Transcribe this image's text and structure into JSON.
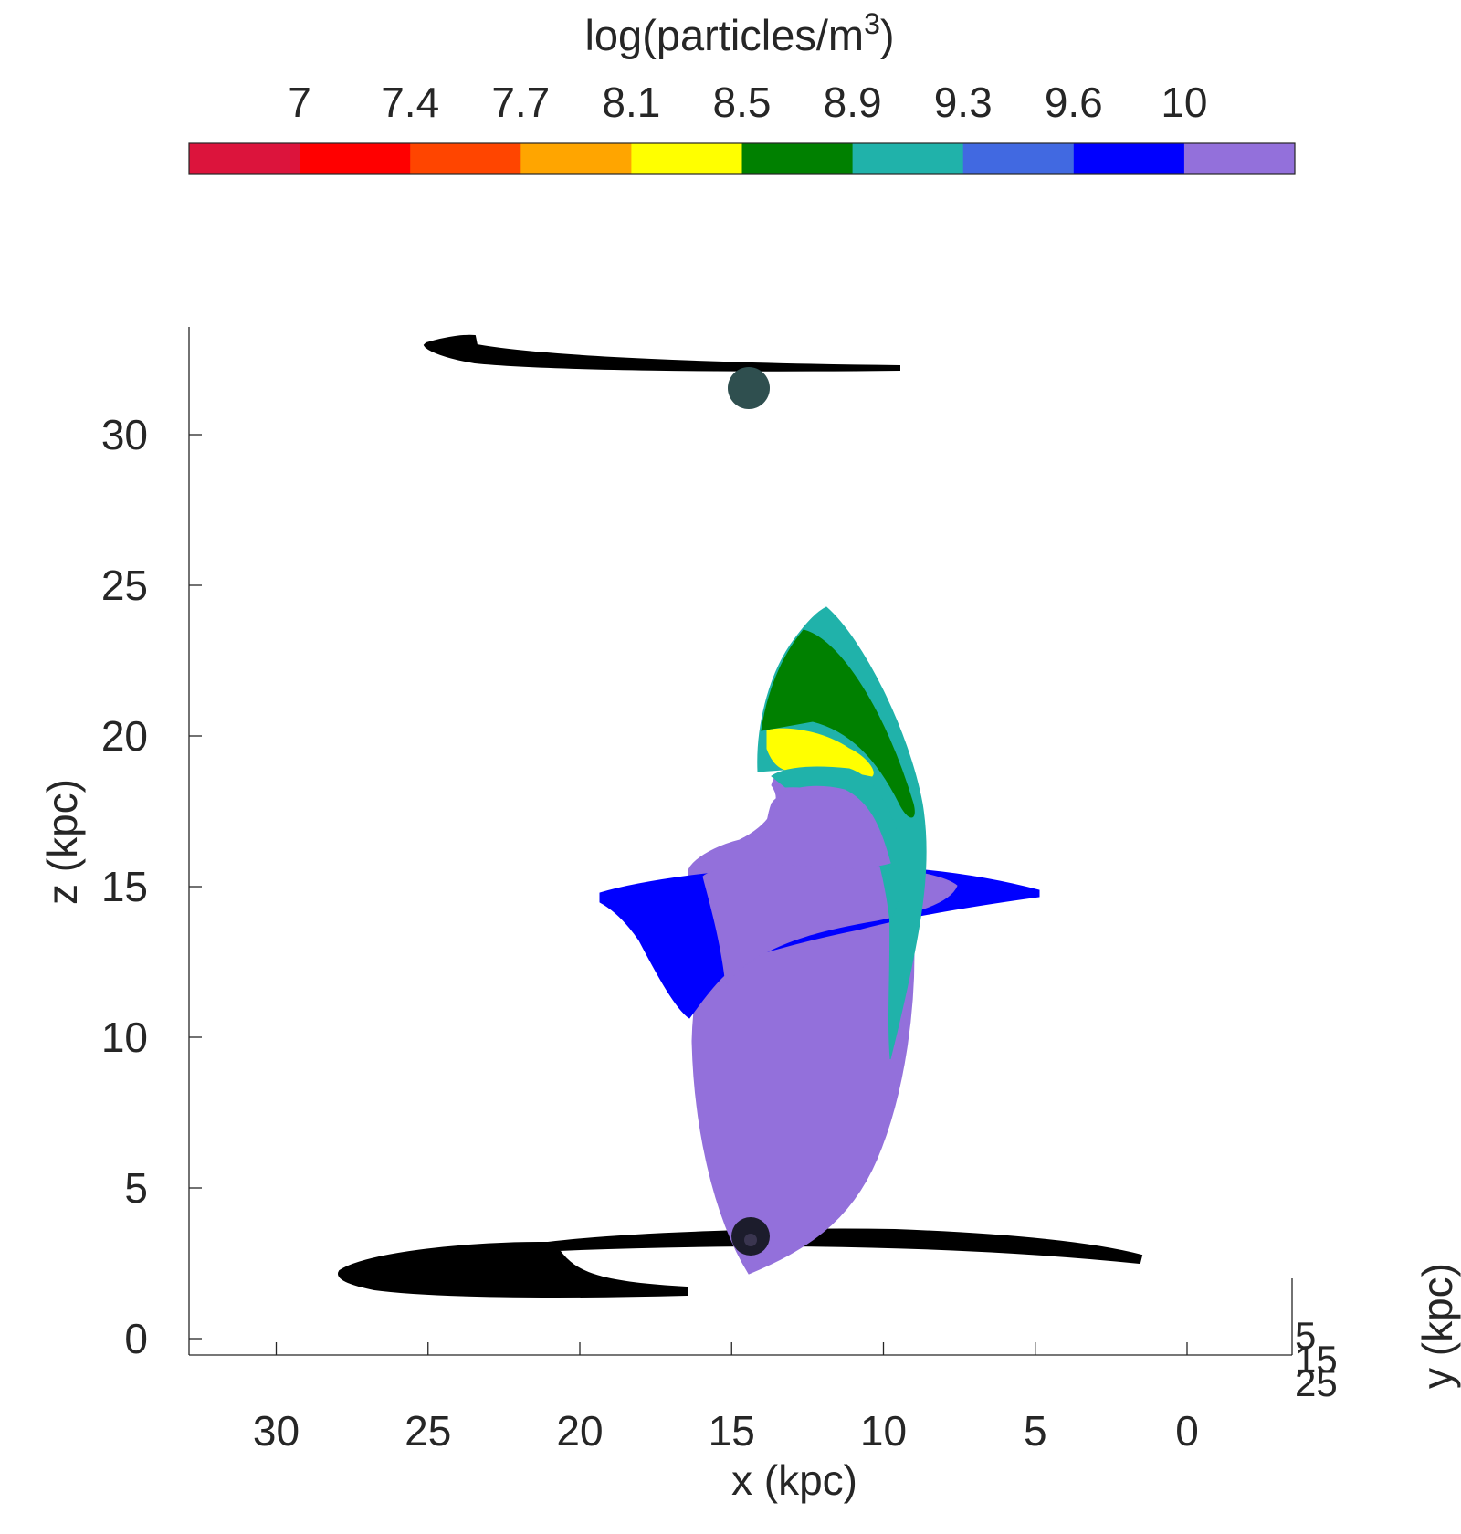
{
  "chart_data": {
    "type": "scatter",
    "view": "3-D scatter seen along the y axis (x reversed, decreasing to the right)",
    "colorbar": {
      "title_base": "log(particles/m",
      "title_sup": "3",
      "title_close": ")",
      "tick_labels": [
        "7",
        "7.4",
        "7.7",
        "8.1",
        "8.5",
        "8.9",
        "9.3",
        "9.6",
        "10"
      ],
      "colors": [
        "#DC143C",
        "#FF0000",
        "#FF4500",
        "#FFA500",
        "#FFFF00",
        "#008000",
        "#20B2AA",
        "#4169E1",
        "#0000FF",
        "#9370DB"
      ],
      "placement": "top"
    },
    "axes": {
      "x": {
        "label": "x (kpc)",
        "range": [
          33,
          -3.5
        ],
        "reversed": true,
        "ticks": [
          30,
          25,
          20,
          15,
          10,
          5,
          0
        ],
        "tick_labels": [
          "30",
          "25",
          "20",
          "15",
          "10",
          "5",
          "0"
        ]
      },
      "z": {
        "label": "z (kpc)",
        "range": [
          -0.5,
          33.5
        ],
        "ticks": [
          0,
          5,
          10,
          15,
          20,
          25,
          30
        ],
        "tick_labels": [
          "0",
          "5",
          "10",
          "15",
          "20",
          "25",
          "30"
        ]
      },
      "y": {
        "label": "y (kpc)",
        "tick_labels": [
          "5",
          "15",
          "25"
        ]
      }
    },
    "grid": false,
    "series": [
      {
        "name_hint": "upper black stream",
        "color": "#000000",
        "x_range": [
          9.5,
          25.5
        ],
        "z_range": [
          31.8,
          33.0
        ]
      },
      {
        "name_hint": "upper sphere",
        "color": "#2F4F4F",
        "x": 14.2,
        "z": 31.5
      },
      {
        "name_hint": "lower black stream",
        "color": "#000000",
        "x_range": [
          1.5,
          28.0
        ],
        "z_range": [
          1.5,
          3.6
        ]
      },
      {
        "name_hint": "lower sphere",
        "color": "#1a1a2e",
        "x": 14.2,
        "z": 3.3
      },
      {
        "name_hint": "plume 8.5-9.3",
        "log_density_range": [
          8.5,
          9.3
        ],
        "x_range": [
          8.5,
          15.0
        ],
        "z_range": [
          11.0,
          24.2
        ]
      },
      {
        "name_hint": "disk 9.6-10",
        "log_density_range": [
          9.6,
          10.0
        ],
        "x_range": [
          4.8,
          19.5
        ],
        "z_range": [
          10.5,
          15.6
        ]
      },
      {
        "name_hint": "core >10",
        "log_density_range": [
          10.0,
          10.4
        ],
        "x_range": [
          9.0,
          16.5
        ],
        "z_range": [
          2.2,
          18.7
        ]
      }
    ]
  }
}
